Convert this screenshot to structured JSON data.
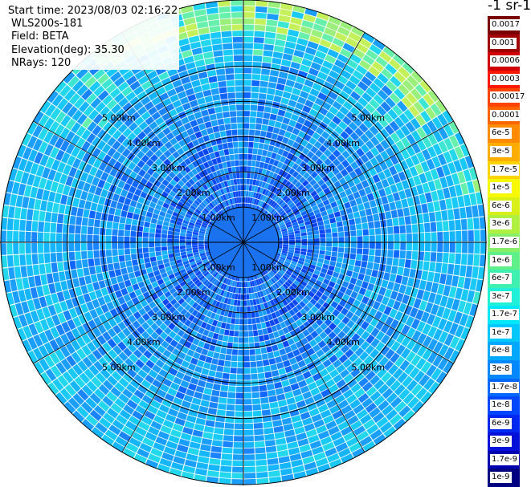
{
  "info": {
    "start_time": "Start time: 2023/08/03 02:16:22",
    "instrument": "WLS200s-181",
    "field": "Field: BETA",
    "elevation": "Elevation(deg): 35.30",
    "nrays": "NRays: 120"
  },
  "colorbar": {
    "unit": "-1 sr-1",
    "labels": [
      "0.0017",
      "0.001",
      "0.0006",
      "0.0003",
      "0.00017",
      "0.0001",
      "6e-5",
      "3e-5",
      "1.7e-5",
      "1e-5",
      "6e-6",
      "3e-6",
      "1.7e-6",
      "1e-6",
      "6e-7",
      "3e-7",
      "1.7e-7",
      "1e-7",
      "6e-8",
      "3e-8",
      "1.7e-8",
      "1e-8",
      "6e-9",
      "3e-9",
      "1.7e-9",
      "1e-9"
    ],
    "colors": [
      "#7a0000",
      "#a00000",
      "#d00000",
      "#ff1800",
      "#ff4400",
      "#ff6600",
      "#ff8c00",
      "#ffae00",
      "#ffd400",
      "#f8f800",
      "#d8f018",
      "#b0f040",
      "#88f068",
      "#60f08a",
      "#40f0b0",
      "#20f0d8",
      "#00e8f8",
      "#00c8ff",
      "#00a8ff",
      "#0088ff",
      "#0068ff",
      "#0048ff",
      "#0028f0",
      "#0010d8",
      "#0000b0",
      "#000080"
    ]
  },
  "chart_data": {
    "type": "heatmap",
    "plot": "polar-ppi",
    "nrays": 120,
    "elevation_deg": 35.3,
    "range_rings_km": [
      {
        "km": 1,
        "label": "1.00km"
      },
      {
        "km": 2,
        "label": "2.00km"
      },
      {
        "km": 3,
        "label": "3.00km"
      },
      {
        "km": 4,
        "label": "4.00km"
      },
      {
        "km": 5,
        "label": "5.00km"
      }
    ],
    "max_range_km": 6.9,
    "blanked_range_km": 1.0,
    "field": "BETA"
  }
}
